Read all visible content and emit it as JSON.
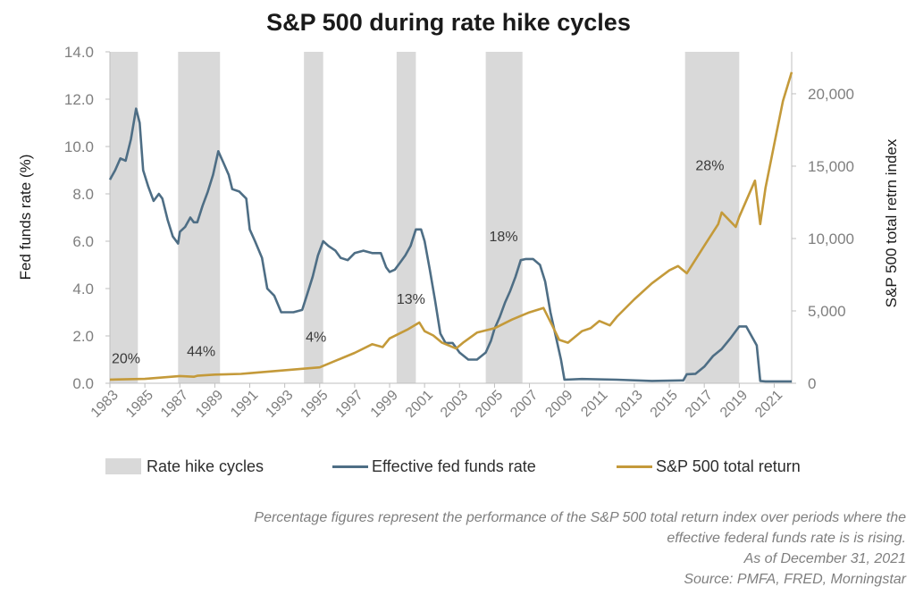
{
  "chart_data": {
    "type": "line",
    "title": "S&P 500 during rate hike cycles",
    "ylabel_left": "Fed funds rate (%)",
    "ylabel_right": "S&P 500 total retrn index",
    "x_range": [
      1983,
      2022
    ],
    "ylim_left": [
      0,
      14
    ],
    "ylim_right": [
      0,
      22898
    ],
    "yticks_left": [
      "0.0",
      "2.0",
      "4.0",
      "6.0",
      "8.0",
      "10.0",
      "12.0",
      "14.0"
    ],
    "yticks_right": [
      "0",
      "5,000",
      "10,000",
      "15,000",
      "20,000"
    ],
    "xticks": [
      "1983",
      "1985",
      "1987",
      "1989",
      "1991",
      "1993",
      "1995",
      "1997",
      "1999",
      "2001",
      "2003",
      "2005",
      "2007",
      "2009",
      "2011",
      "2013",
      "2015",
      "2017",
      "2019",
      "2021"
    ],
    "grid": false,
    "legend_position": "bottom",
    "rate_hike_cycles": [
      {
        "start": 1983.0,
        "end": 1984.6,
        "label": "20%",
        "label_x": 1983.1,
        "label_y": 0.85
      },
      {
        "start": 1986.9,
        "end": 1989.3,
        "label": "44%",
        "label_x": 1987.4,
        "label_y": 1.15
      },
      {
        "start": 1994.1,
        "end": 1995.2,
        "label": "4%",
        "label_x": 1994.2,
        "label_y": 1.75
      },
      {
        "start": 1999.4,
        "end": 2000.5,
        "label": "13%",
        "label_x": 1999.4,
        "label_y": 3.35
      },
      {
        "start": 2004.5,
        "end": 2006.6,
        "label": "18%",
        "label_x": 2004.7,
        "label_y": 6.0
      },
      {
        "start": 2015.9,
        "end": 2019.0,
        "label": "28%",
        "label_x": 2016.5,
        "label_y": 9.0
      }
    ],
    "series": [
      {
        "name": "Effective fed funds rate",
        "axis": "left",
        "color": "#4e6e85",
        "x": [
          1983.0,
          1983.3,
          1983.6,
          1983.9,
          1984.2,
          1984.5,
          1984.7,
          1984.9,
          1985.2,
          1985.5,
          1985.8,
          1986.0,
          1986.3,
          1986.6,
          1986.9,
          1987.0,
          1987.3,
          1987.6,
          1987.8,
          1988.0,
          1988.3,
          1988.6,
          1988.9,
          1989.2,
          1989.5,
          1989.8,
          1990.0,
          1990.4,
          1990.8,
          1991.0,
          1991.3,
          1991.7,
          1992.0,
          1992.4,
          1992.8,
          1993.0,
          1993.5,
          1994.0,
          1994.3,
          1994.6,
          1994.9,
          1995.2,
          1995.5,
          1995.9,
          1996.2,
          1996.6,
          1997.0,
          1997.5,
          1998.0,
          1998.5,
          1998.8,
          1999.0,
          1999.3,
          1999.6,
          1999.9,
          2000.2,
          2000.5,
          2000.8,
          2001.0,
          2001.3,
          2001.6,
          2001.9,
          2002.2,
          2002.6,
          2003.0,
          2003.5,
          2004.0,
          2004.5,
          2004.8,
          2005.0,
          2005.3,
          2005.6,
          2005.9,
          2006.2,
          2006.5,
          2006.8,
          2007.2,
          2007.6,
          2007.9,
          2008.2,
          2008.5,
          2008.8,
          2009.0,
          2010.0,
          2012.0,
          2014.0,
          2015.8,
          2016.0,
          2016.5,
          2017.0,
          2017.5,
          2018.0,
          2018.5,
          2019.0,
          2019.4,
          2019.7,
          2020.0,
          2020.2,
          2020.5,
          2021.0,
          2021.5,
          2022.0
        ],
        "values": [
          8.6,
          9.0,
          9.5,
          9.4,
          10.3,
          11.6,
          11.0,
          9.0,
          8.3,
          7.7,
          8.0,
          7.8,
          6.9,
          6.2,
          5.9,
          6.4,
          6.6,
          7.0,
          6.8,
          6.8,
          7.5,
          8.1,
          8.8,
          9.8,
          9.3,
          8.8,
          8.2,
          8.1,
          7.8,
          6.5,
          6.0,
          5.3,
          4.0,
          3.7,
          3.0,
          3.0,
          3.0,
          3.1,
          3.8,
          4.5,
          5.4,
          6.0,
          5.8,
          5.6,
          5.3,
          5.2,
          5.5,
          5.6,
          5.5,
          5.5,
          4.9,
          4.7,
          4.8,
          5.1,
          5.4,
          5.8,
          6.5,
          6.5,
          6.0,
          4.8,
          3.5,
          2.1,
          1.7,
          1.7,
          1.3,
          1.0,
          1.0,
          1.3,
          1.8,
          2.3,
          2.8,
          3.4,
          3.9,
          4.5,
          5.2,
          5.25,
          5.25,
          5.0,
          4.3,
          3.0,
          2.0,
          1.0,
          0.15,
          0.18,
          0.15,
          0.1,
          0.12,
          0.38,
          0.4,
          0.7,
          1.15,
          1.45,
          1.9,
          2.4,
          2.4,
          2.0,
          1.6,
          0.1,
          0.08,
          0.08,
          0.08,
          0.08
        ]
      },
      {
        "name": "S&P 500 total return",
        "axis": "right",
        "color": "#c49a3a",
        "x": [
          1983.0,
          1985.0,
          1987.0,
          1987.8,
          1988.0,
          1989.0,
          1990.5,
          1991.0,
          1993.0,
          1995.0,
          1996.0,
          1997.0,
          1998.0,
          1998.6,
          1999.0,
          2000.0,
          2000.7,
          2001.0,
          2001.5,
          2002.0,
          2002.8,
          2003.2,
          2004.0,
          2005.0,
          2006.0,
          2007.0,
          2007.8,
          2008.3,
          2008.7,
          2009.2,
          2010.0,
          2010.5,
          2011.0,
          2011.6,
          2012.0,
          2013.0,
          2014.0,
          2015.0,
          2015.5,
          2016.0,
          2017.0,
          2017.8,
          2018.0,
          2018.8,
          2019.0,
          2019.9,
          2020.2,
          2020.5,
          2021.0,
          2021.5,
          2022.0
        ],
        "values": [
          250,
          300,
          500,
          450,
          520,
          600,
          650,
          700,
          900,
          1100,
          1600,
          2100,
          2700,
          2500,
          3100,
          3700,
          4200,
          3600,
          3300,
          2800,
          2400,
          2800,
          3500,
          3800,
          4400,
          4900,
          5200,
          4000,
          3000,
          2800,
          3600,
          3800,
          4300,
          4000,
          4600,
          5800,
          6900,
          7800,
          8100,
          7600,
          9500,
          11000,
          11800,
          10800,
          11500,
          14000,
          11000,
          13500,
          16500,
          19500,
          21500
        ]
      }
    ]
  },
  "legend": {
    "items": [
      {
        "label": "Rate hike cycles"
      },
      {
        "label": "Effective fed funds rate"
      },
      {
        "label": "S&P 500 total return"
      }
    ]
  },
  "notes": {
    "line1": "Percentage figures represent the performance of the S&P 500 total return index over periods where the",
    "line2": "effective federal funds rate is is rising.",
    "line3": "As of December 31, 2021",
    "line4": "Source: PMFA, FRED, Morningstar"
  }
}
